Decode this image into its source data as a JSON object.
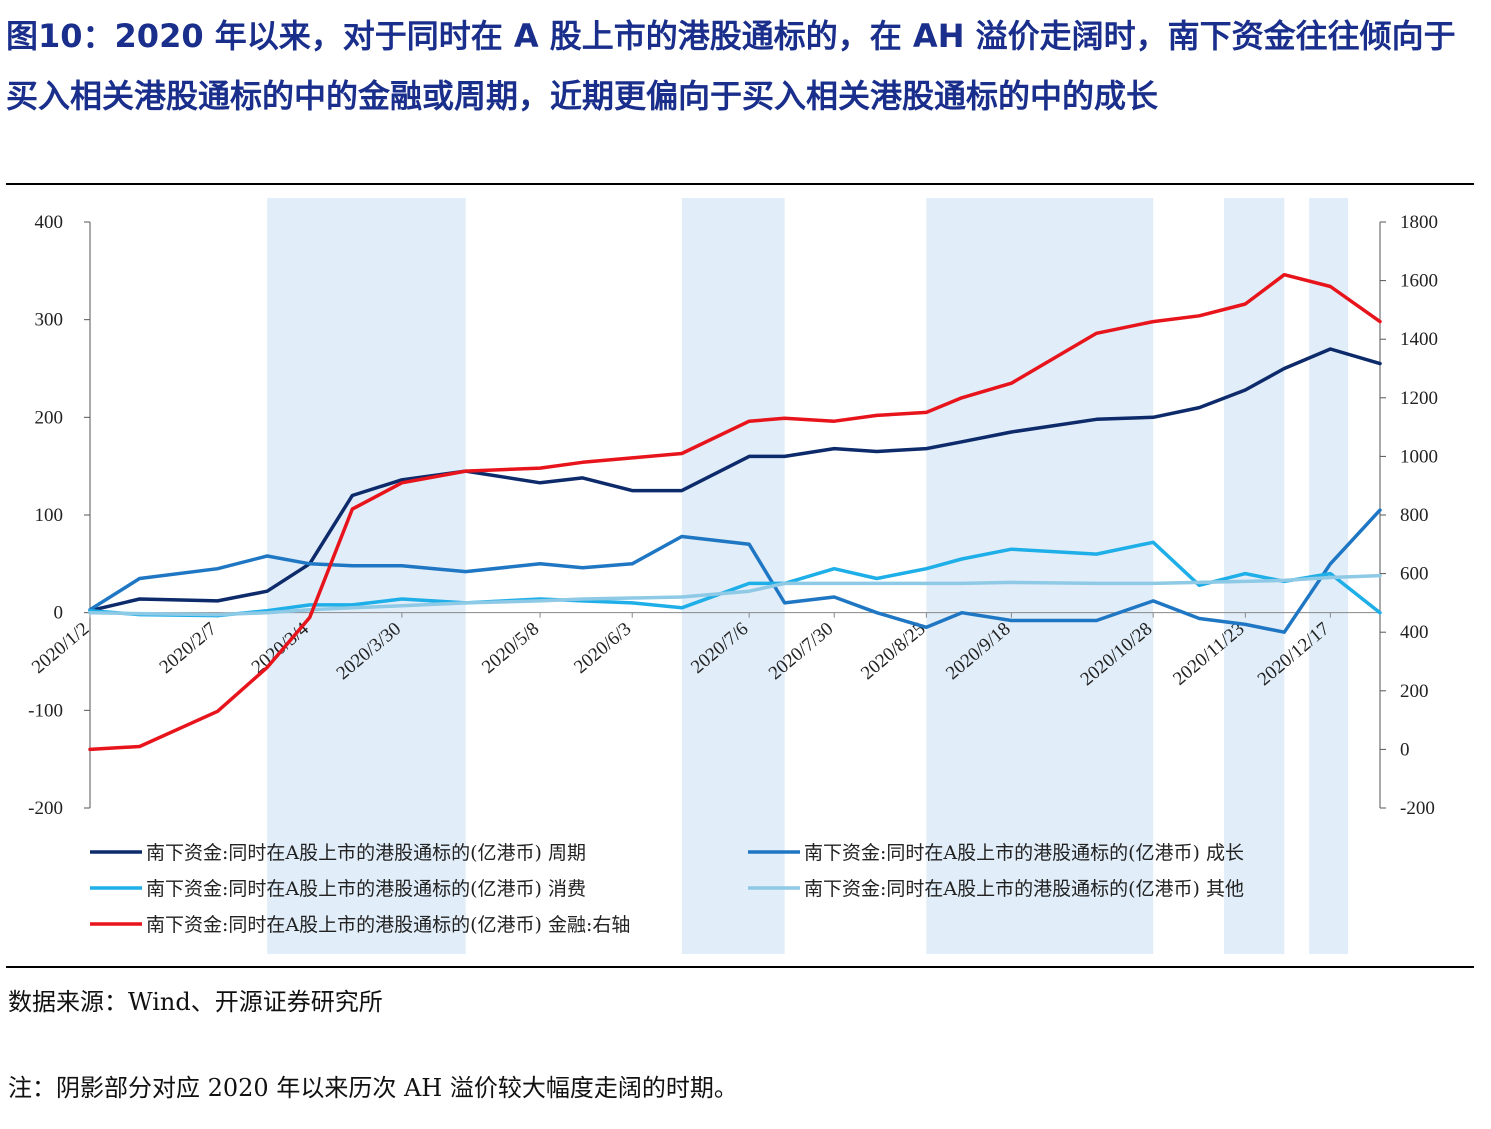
{
  "figure": {
    "title": "图10：2020 年以来，对于同时在 A 股上市的港股通标的，在 AH 溢价走阔时，南下资金往往倾向于买入相关港股通标的中的金融或周期，近期更偏向于买入相关港股通标的中的成长",
    "source": "数据来源：Wind、开源证券研究所",
    "note": "注：阴影部分对应 2020 年以来历次 AH 溢价较大幅度走阔的时期。"
  },
  "chart_data": {
    "type": "line",
    "x": [
      "2020/1/2",
      "2020/1/16",
      "2020/2/7",
      "2020/2/21",
      "2020/3/4",
      "2020/3/16",
      "2020/3/30",
      "2020/4/17",
      "2020/5/8",
      "2020/5/20",
      "2020/6/3",
      "2020/6/17",
      "2020/7/6",
      "2020/7/16",
      "2020/7/30",
      "2020/8/11",
      "2020/8/25",
      "2020/9/4",
      "2020/9/18",
      "2020/10/12",
      "2020/10/28",
      "2020/11/10",
      "2020/11/23",
      "2020/12/4",
      "2020/12/17",
      "2020/12/31"
    ],
    "x_tick_labels": [
      "2020/1/2",
      "2020/2/7",
      "2020/3/4",
      "2020/3/30",
      "2020/5/8",
      "2020/6/3",
      "2020/7/6",
      "2020/7/30",
      "2020/8/25",
      "2020/9/18",
      "2020/10/28",
      "2020/11/23",
      "2020/12/17"
    ],
    "y_left": {
      "ticks": [
        "400",
        "300",
        "200",
        "100",
        "0",
        "-100",
        "-200"
      ],
      "range": [
        -200,
        400
      ]
    },
    "y_right": {
      "ticks": [
        "1800",
        "1600",
        "1400",
        "1200",
        "1000",
        "800",
        "600",
        "400",
        "200",
        "0",
        "-200"
      ],
      "range": [
        -200,
        1800
      ]
    },
    "shaded_periods": [
      [
        "2020/2/21",
        "2020/4/17"
      ],
      [
        "2020/6/17",
        "2020/7/16"
      ],
      [
        "2020/8/25",
        "2020/10/28"
      ],
      [
        "2020/11/17",
        "2020/12/4"
      ],
      [
        "2020/12/11",
        "2020/12/22"
      ]
    ],
    "series": [
      {
        "name": "南下资金:同时在A股上市的港股通标的(亿港币) 周期",
        "axis": "left",
        "color": "#0d2a6b",
        "values": [
          2,
          14,
          12,
          22,
          50,
          120,
          136,
          145,
          133,
          138,
          125,
          125,
          160,
          160,
          168,
          165,
          168,
          175,
          185,
          198,
          200,
          210,
          228,
          250,
          270,
          255
        ]
      },
      {
        "name": "南下资金:同时在A股上市的港股通标的(亿港币) 成长",
        "axis": "left",
        "color": "#1f77c4",
        "values": [
          3,
          35,
          45,
          58,
          50,
          48,
          48,
          42,
          50,
          46,
          50,
          78,
          70,
          10,
          16,
          0,
          -15,
          0,
          -8,
          -8,
          12,
          -6,
          -12,
          -20,
          50,
          105
        ]
      },
      {
        "name": "南下资金:同时在A股上市的港股通标的(亿港币) 消费",
        "axis": "left",
        "color": "#1eaee8",
        "values": [
          2,
          -2,
          -3,
          2,
          8,
          8,
          14,
          10,
          14,
          12,
          10,
          5,
          30,
          30,
          45,
          35,
          45,
          55,
          65,
          60,
          72,
          28,
          40,
          32,
          40,
          0
        ]
      },
      {
        "name": "南下资金:同时在A股上市的港股通标的(亿港币) 其他",
        "axis": "left",
        "color": "#8ecae6",
        "values": [
          0,
          -1,
          -2,
          0,
          3,
          5,
          7,
          10,
          12,
          14,
          15,
          16,
          22,
          30,
          30,
          30,
          30,
          30,
          31,
          30,
          30,
          31,
          32,
          33,
          36,
          38
        ]
      },
      {
        "name": "南下资金:同时在A股上市的港股通标的(亿港币) 金融:右轴",
        "axis": "right",
        "color": "#e8141c",
        "values": [
          0,
          10,
          130,
          280,
          450,
          820,
          910,
          950,
          960,
          980,
          995,
          1010,
          1120,
          1130,
          1120,
          1140,
          1150,
          1200,
          1250,
          1420,
          1460,
          1480,
          1520,
          1620,
          1580,
          1460
        ]
      }
    ]
  }
}
